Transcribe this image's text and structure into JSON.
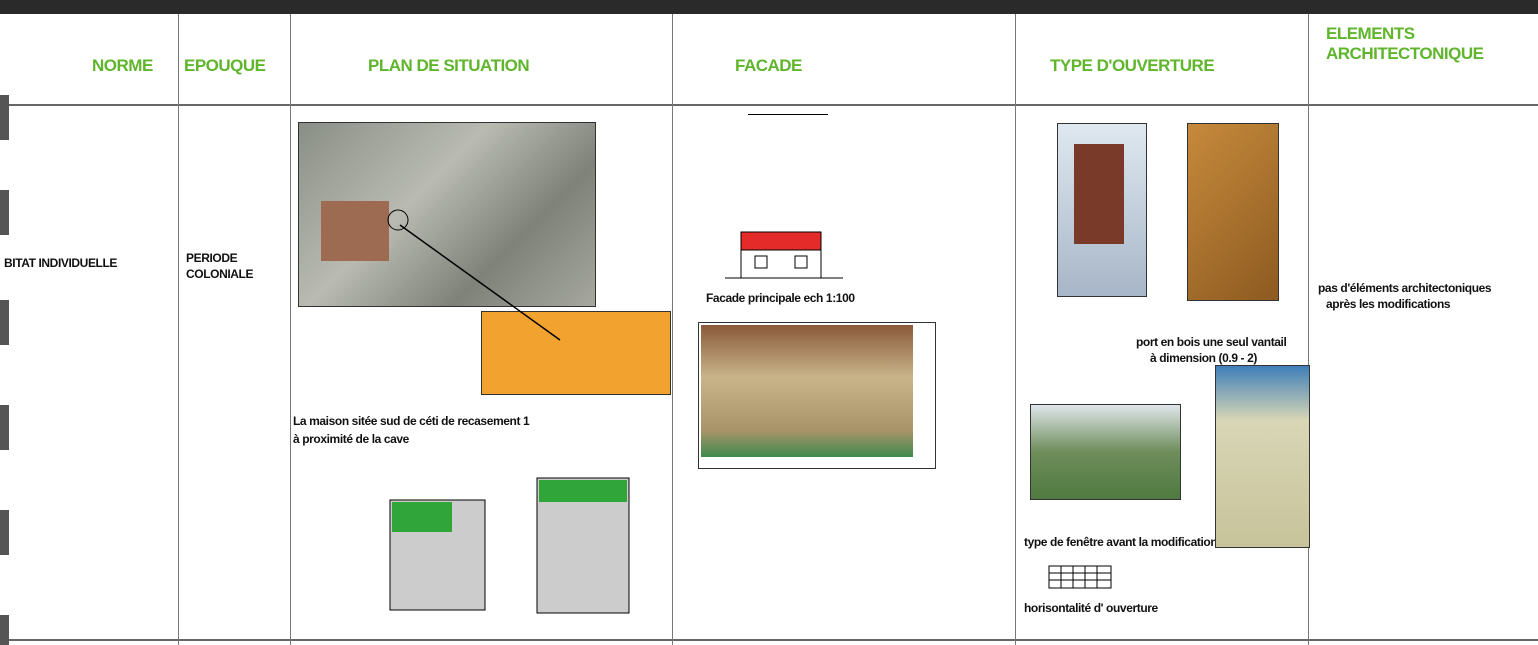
{
  "table": {
    "header": [
      "NORME",
      "EPOUQUE",
      "PLAN DE SITUATION",
      "FACADE",
      "TYPE D'OUVERTURE",
      "ELEMENTS ARCHITECTONIQUE"
    ],
    "row": {
      "norme": "BITAT INDIVIDUELLE",
      "epoque": "PERIODE COLONIALE",
      "plan_caption": [
        "La maison sitée sud de céti de recasement 1",
        "à proximité de la cave"
      ],
      "facade_caption": "Facade principale ech 1:100",
      "ouverture": {
        "door_caption": [
          "port en bois une seul vantail",
          "à dimension  (0.9 - 2)"
        ],
        "window_caption": "type de  fenêtre avant la modification",
        "grid_caption": "horisontalité d' ouverture"
      },
      "elements": [
        "pas d'éléments architectoniques",
        "après les modifications"
      ]
    }
  }
}
